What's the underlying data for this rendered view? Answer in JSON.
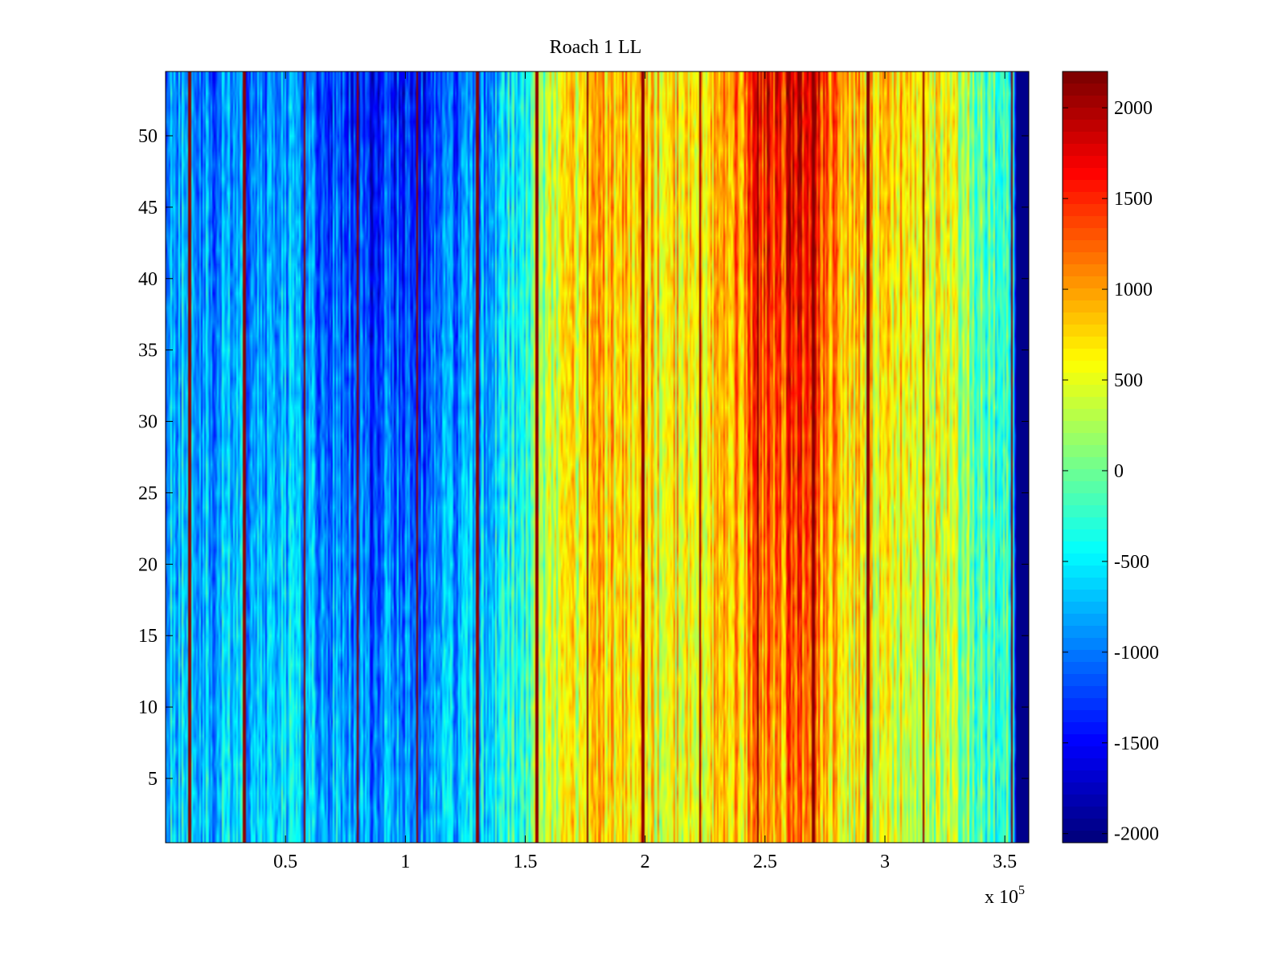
{
  "chart_data": {
    "type": "heatmap",
    "title": "Roach 1 LL",
    "xlabel": "",
    "ylabel": "",
    "x_multiplier_label": "x 10",
    "x_multiplier_exponent": "5",
    "xlim": [
      0,
      3.6
    ],
    "ylim": [
      0.5,
      54.5
    ],
    "x_ticks": [
      0.5,
      1,
      1.5,
      2,
      2.5,
      3,
      3.5
    ],
    "x_tick_labels": [
      "0.5",
      "1",
      "1.5",
      "2",
      "2.5",
      "3",
      "3.5"
    ],
    "y_ticks": [
      5,
      10,
      15,
      20,
      25,
      30,
      35,
      40,
      45,
      50
    ],
    "y_tick_labels": [
      "5",
      "10",
      "15",
      "20",
      "25",
      "30",
      "35",
      "40",
      "45",
      "50"
    ],
    "rows": 54,
    "colormap": "jet",
    "clim": [
      -2050,
      2200
    ],
    "colorbar_ticks": [
      2000,
      1500,
      1000,
      500,
      0,
      -500,
      -1000,
      -1500,
      -2000
    ],
    "colorbar_tick_labels": [
      "2000",
      "1500",
      "1000",
      "500",
      "0",
      "-500",
      "-1000",
      "-1500",
      "-2000"
    ],
    "column_profile": [
      {
        "x": 0.0,
        "top": -800,
        "bottom": -600
      },
      {
        "x": 0.25,
        "top": -1000,
        "bottom": -650
      },
      {
        "x": 0.5,
        "top": -950,
        "bottom": -600
      },
      {
        "x": 0.75,
        "top": -1350,
        "bottom": -800
      },
      {
        "x": 0.95,
        "top": -1500,
        "bottom": -900
      },
      {
        "x": 1.1,
        "top": -1350,
        "bottom": -850
      },
      {
        "x": 1.3,
        "top": -1100,
        "bottom": -700
      },
      {
        "x": 1.5,
        "top": -300,
        "bottom": -100
      },
      {
        "x": 1.62,
        "top": 400,
        "bottom": 350
      },
      {
        "x": 1.8,
        "top": 1000,
        "bottom": 800
      },
      {
        "x": 2.0,
        "top": 700,
        "bottom": 500
      },
      {
        "x": 2.2,
        "top": 800,
        "bottom": 600
      },
      {
        "x": 2.35,
        "top": 1000,
        "bottom": 800
      },
      {
        "x": 2.5,
        "top": 1600,
        "bottom": 900
      },
      {
        "x": 2.62,
        "top": 1800,
        "bottom": 1100
      },
      {
        "x": 2.75,
        "top": 1400,
        "bottom": 800
      },
      {
        "x": 2.9,
        "top": 800,
        "bottom": 500
      },
      {
        "x": 3.1,
        "top": 900,
        "bottom": 450
      },
      {
        "x": 3.3,
        "top": 400,
        "bottom": 150
      },
      {
        "x": 3.5,
        "top": -300,
        "bottom": -300
      },
      {
        "x": 3.54,
        "top": -400,
        "bottom": -400
      },
      {
        "x": 3.545,
        "top": -2000,
        "bottom": -2000
      },
      {
        "x": 3.6,
        "top": -2000,
        "bottom": -2000
      }
    ],
    "spike_columns": [
      0.1,
      0.33,
      0.58,
      0.8,
      1.05,
      1.3,
      1.55,
      1.76,
      1.99,
      2.23,
      2.47,
      2.7,
      2.93,
      3.16,
      3.53
    ],
    "spike_value": 2150
  }
}
